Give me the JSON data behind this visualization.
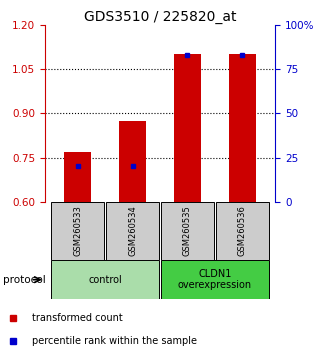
{
  "title": "GDS3510 / 225820_at",
  "samples": [
    "GSM260533",
    "GSM260534",
    "GSM260535",
    "GSM260536"
  ],
  "red_values": [
    0.77,
    0.875,
    1.1,
    1.1
  ],
  "blue_pct": [
    20,
    20,
    83,
    83
  ],
  "ylim_left": [
    0.6,
    1.2
  ],
  "ylim_right": [
    0,
    100
  ],
  "yticks_left": [
    0.6,
    0.75,
    0.9,
    1.05,
    1.2
  ],
  "yticks_right": [
    0,
    25,
    50,
    75,
    100
  ],
  "ytick_labels_right": [
    "0",
    "25",
    "50",
    "75",
    "100%"
  ],
  "groups": [
    {
      "label": "control",
      "samples": [
        0,
        1
      ],
      "color": "#aaddaa"
    },
    {
      "label": "CLDN1\noverexpression",
      "samples": [
        2,
        3
      ],
      "color": "#44cc44"
    }
  ],
  "protocol_label": "protocol",
  "legend_red": "transformed count",
  "legend_blue": "percentile rank within the sample",
  "bar_width": 0.5,
  "bar_color": "#cc0000",
  "blue_color": "#0000cc",
  "axis_color_left": "#cc0000",
  "axis_color_right": "#0000cc",
  "background_color": "#ffffff",
  "sample_box_color": "#cccccc",
  "title_fontsize": 10
}
